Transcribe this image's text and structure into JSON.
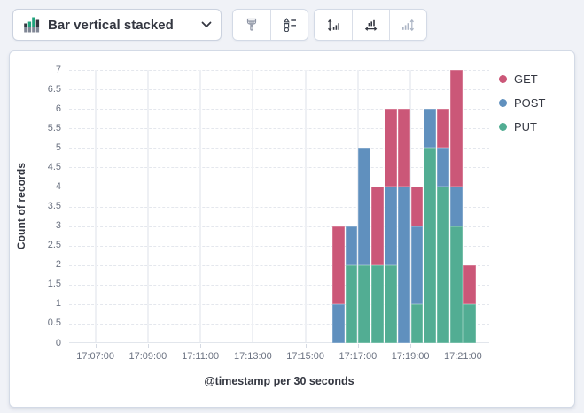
{
  "toolbar": {
    "chart_type": {
      "label": "Bar vertical stacked",
      "icon": "bar-vertical-stacked-icon"
    },
    "buttons": [
      {
        "name": "visual-options-button",
        "icon": "paint-brush-icon",
        "disabled": false
      },
      {
        "name": "legend-settings-button",
        "icon": "shapes-list-icon",
        "disabled": false
      },
      {
        "name": "left-axis-settings-button",
        "icon": "vertical-axis-icon",
        "disabled": false
      },
      {
        "name": "bottom-axis-settings-button",
        "icon": "horizontal-axis-icon",
        "disabled": false
      },
      {
        "name": "right-axis-settings-button",
        "icon": "right-axis-icon",
        "disabled": true
      }
    ]
  },
  "colors": {
    "page_bg": "#F0F2F7",
    "panel_border": "#D3DAE6",
    "grid_vertical": "#EEF0F4",
    "grid_horizontal": "#E4E7ED",
    "tick_text": "#6A7180",
    "axis_title_text": "#343741",
    "icon_default": "#343741",
    "icon_muted": "#8E95A5",
    "icon_disabled": "#ABB4C4",
    "icon_green": "#20A37C"
  },
  "chart_data": {
    "type": "bar",
    "stacked": true,
    "title": "",
    "xlabel": "@timestamp per 30 seconds",
    "ylabel": "Count of records",
    "ylim": [
      0,
      7
    ],
    "y_ticks": [
      0,
      0.5,
      1,
      1.5,
      2,
      2.5,
      3,
      3.5,
      4,
      4.5,
      5,
      5.5,
      6,
      6.5,
      7
    ],
    "x_domain": {
      "start": "17:06:00",
      "end": "17:22:00",
      "interval_seconds": 30
    },
    "x_ticks": [
      "17:07:00",
      "17:09:00",
      "17:11:00",
      "17:13:00",
      "17:15:00",
      "17:17:00",
      "17:19:00",
      "17:21:00"
    ],
    "categories": [
      "17:16:00",
      "17:16:30",
      "17:17:00",
      "17:17:30",
      "17:18:00",
      "17:18:30",
      "17:19:00",
      "17:19:30",
      "17:20:00",
      "17:20:30",
      "17:21:00"
    ],
    "series": [
      {
        "name": "GET",
        "color": "#CB5778",
        "values": [
          2,
          0,
          0,
          2,
          2,
          2,
          1,
          0,
          1,
          3,
          1
        ]
      },
      {
        "name": "POST",
        "color": "#6090BE",
        "values": [
          1,
          1,
          3,
          0,
          2,
          4,
          2,
          1,
          1,
          1,
          0
        ]
      },
      {
        "name": "PUT",
        "color": "#52AD93",
        "values": [
          0,
          2,
          2,
          2,
          2,
          0,
          1,
          5,
          4,
          3,
          1
        ]
      }
    ],
    "stack_order_bottom_to_top": [
      "PUT",
      "POST",
      "GET"
    ],
    "legend": {
      "position": "right",
      "items": [
        "GET",
        "POST",
        "PUT"
      ]
    },
    "grid": {
      "vertical": "solid",
      "horizontal": "dashed"
    }
  }
}
